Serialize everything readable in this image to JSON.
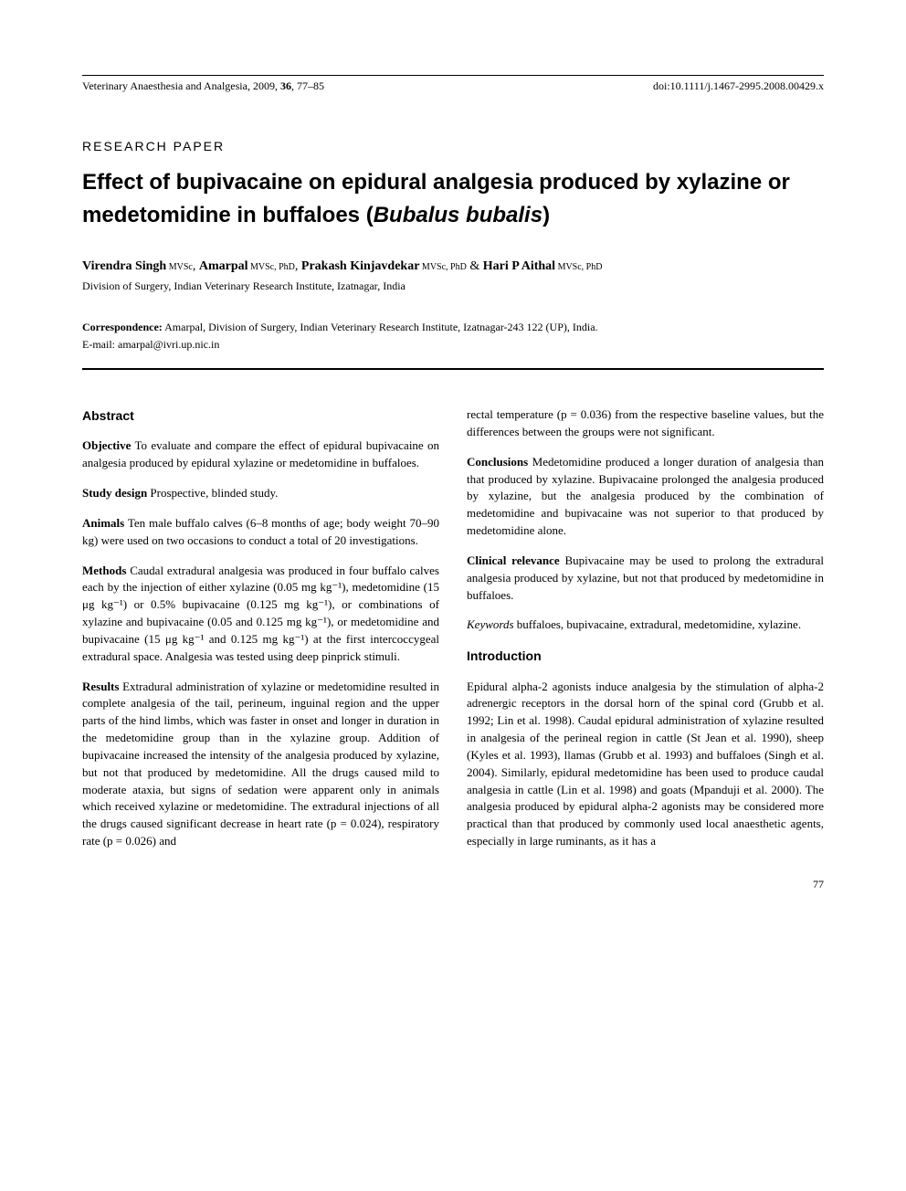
{
  "header": {
    "journal": "Veterinary Anaesthesia and Analgesia, 2009, ",
    "volume_bold": "36",
    "pages": ", 77–85",
    "doi": "doi:10.1111/j.1467-2995.2008.00429.x"
  },
  "paper_type": "RESEARCH PAPER",
  "title_pre": "Effect of bupivacaine on epidural analgesia produced by xylazine or medetomidine in buffaloes (",
  "title_species": "Bubalus bubalis",
  "title_post": ")",
  "authors": {
    "a1_name": "Virendra Singh",
    "a1_deg": " MVSc",
    "a2_name": "Amarpal",
    "a2_deg": " MVSc, PhD",
    "a3_name": "Prakash Kinjavdekar",
    "a3_deg": " MVSc, PhD",
    "a4_name": "Hari P Aithal",
    "a4_deg": " MVSc, PhD",
    "sep": ", ",
    "amp": " & "
  },
  "affiliation": "Division of Surgery, Indian Veterinary Research Institute, Izatnagar, India",
  "correspondence_label": "Correspondence:",
  "correspondence_text": " Amarpal, Division of Surgery, Indian Veterinary Research Institute, Izatnagar-243 122 (UP), India.",
  "email": "E-mail: amarpal@ivri.up.nic.in",
  "abstract_heading": "Abstract",
  "objective_label": "Objective",
  "objective_text": " To evaluate and compare the effect of epidural bupivacaine on analgesia produced by epidural xylazine or medetomidine in buffaloes.",
  "study_label": "Study design",
  "study_text": " Prospective, blinded study.",
  "animals_label": "Animals",
  "animals_text": " Ten male buffalo calves (6–8 months of age; body weight 70–90 kg) were used on two occasions to conduct a total of 20 investigations.",
  "methods_label": "Methods",
  "methods_text": " Caudal extradural analgesia was produced in four buffalo calves each by the injection of either xylazine (0.05 mg kg⁻¹), medetomidine (15 μg kg⁻¹) or 0.5% bupivacaine (0.125 mg kg⁻¹), or combinations of xylazine and bupivacaine (0.05 and 0.125 mg kg⁻¹), or medetomidine and bupivacaine (15 μg kg⁻¹ and 0.125 mg kg⁻¹) at the first intercoccygeal extradural space. Analgesia was tested using deep pinprick stimuli.",
  "results_label": "Results",
  "results_text": " Extradural administration of xylazine or medetomidine resulted in complete analgesia of the tail, perineum, inguinal region and the upper parts of the hind limbs, which was faster in onset and longer in duration in the medetomidine group than in the xylazine group. Addition of bupivacaine increased the intensity of the analgesia produced by xylazine, but not that produced by medetomidine. All the drugs caused mild to moderate ataxia, but signs of sedation were apparent only in animals which received xylazine or medetomidine. The extradural injections of all the drugs caused significant decrease in heart rate (p = 0.024), respiratory rate (p = 0.026) and",
  "results_cont": "rectal temperature (p = 0.036) from the respective baseline values, but the differences between the groups were not significant.",
  "conclusions_label": "Conclusions",
  "conclusions_text": " Medetomidine produced a longer duration of analgesia than that produced by xylazine. Bupivacaine prolonged the analgesia produced by xylazine, but the analgesia produced by the combination of medetomidine and bupivacaine was not superior to that produced by medetomidine alone.",
  "clinical_label": "Clinical relevance",
  "clinical_text": " Bupivacaine may be used to prolong the extradural analgesia produced by xylazine, but not that produced by medetomidine in buffaloes.",
  "keywords_label": "Keywords",
  "keywords_text": " buffaloes, bupivacaine, extradural, medetomidine, xylazine.",
  "intro_heading": "Introduction",
  "intro_text": "Epidural alpha-2 agonists induce analgesia by the stimulation of alpha-2 adrenergic receptors in the dorsal horn of the spinal cord (Grubb et al. 1992; Lin et al. 1998). Caudal epidural administration of xylazine resulted in analgesia of the perineal region in cattle (St Jean et al. 1990), sheep (Kyles et al. 1993), llamas (Grubb et al. 1993) and buffaloes (Singh et al. 2004). Similarly, epidural medetomidine has been used to produce caudal analgesia in cattle (Lin et al. 1998) and goats (Mpanduji et al. 2000). The analgesia produced by epidural alpha-2 agonists may be considered more practical than that produced by commonly used local anaesthetic agents, especially in large ruminants, as it has a",
  "page_number": "77"
}
